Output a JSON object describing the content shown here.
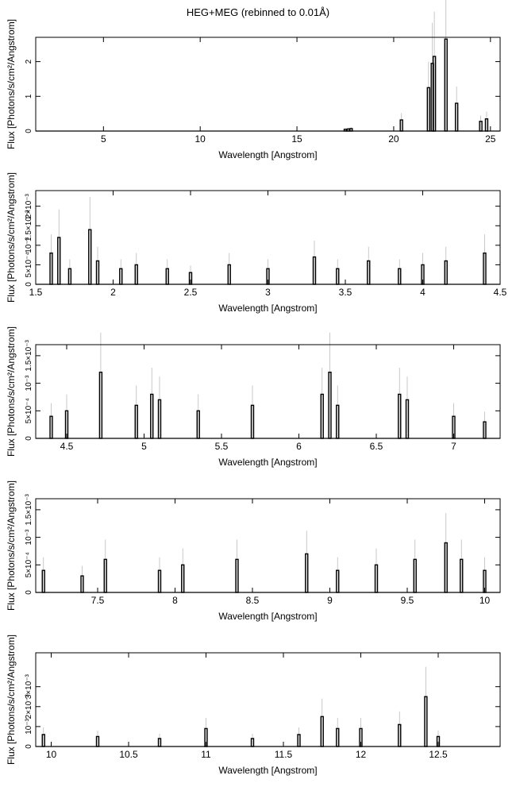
{
  "figure": {
    "title": "HEG+MEG (rebinned to 0.01Å)"
  },
  "chart_data": [
    {
      "type": "line",
      "xlabel": "Wavelength [Angstrom]",
      "ylabel": "Flux [Photons/s/cm²/Angstrom]",
      "xlim": [
        1.5,
        25.5
      ],
      "ylim": [
        0,
        2.7
      ],
      "xticks": [
        5,
        10,
        15,
        20,
        25
      ],
      "xtick_labels": [
        "5",
        "10",
        "15",
        "20",
        "25"
      ],
      "yticks": [
        0,
        1,
        2
      ],
      "ytick_labels": [
        "0",
        "1",
        "2"
      ],
      "steps": [
        [
          17.5,
          0.05
        ],
        [
          17.65,
          0.06
        ],
        [
          17.8,
          0.07
        ],
        [
          20.4,
          0.32
        ],
        [
          21.8,
          1.25
        ],
        [
          22.0,
          1.95
        ],
        [
          22.1,
          2.15
        ],
        [
          22.7,
          2.65
        ],
        [
          23.25,
          0.8
        ],
        [
          24.5,
          0.28
        ],
        [
          24.8,
          0.35
        ]
      ]
    },
    {
      "type": "line",
      "xlabel": "Wavelength [Angstrom]",
      "ylabel": "Flux [Photons/s/cm²/Angstrom]",
      "xlim": [
        1.5,
        4.5
      ],
      "ylim": [
        0,
        0.0024
      ],
      "xticks": [
        1.5,
        2,
        2.5,
        3,
        3.5,
        4,
        4.5
      ],
      "xtick_labels": [
        "1.5",
        "2",
        "2.5",
        "3",
        "3.5",
        "4",
        "4.5"
      ],
      "yticks": [
        0,
        0.0005,
        0.001,
        0.0015,
        0.002
      ],
      "ytick_labels": [
        "0",
        "5×10⁻⁴",
        "10⁻³",
        "1.5×10⁻³",
        "2×10⁻³"
      ],
      "steps": [
        [
          1.6,
          0.0008
        ],
        [
          1.65,
          0.0012
        ],
        [
          1.72,
          0.0004
        ],
        [
          1.85,
          0.0014
        ],
        [
          1.9,
          0.0006
        ],
        [
          2.05,
          0.0004
        ],
        [
          2.15,
          0.0005
        ],
        [
          2.35,
          0.0004
        ],
        [
          2.5,
          0.0003
        ],
        [
          2.75,
          0.0005
        ],
        [
          3.0,
          0.0004
        ],
        [
          3.3,
          0.0007
        ],
        [
          3.45,
          0.0004
        ],
        [
          3.65,
          0.0006
        ],
        [
          3.85,
          0.0004
        ],
        [
          4.0,
          0.0005
        ],
        [
          4.15,
          0.0006
        ],
        [
          4.4,
          0.0008
        ]
      ]
    },
    {
      "type": "line",
      "xlabel": "Wavelength [Angstrom]",
      "ylabel": "Flux [Photons/s/cm²/Angstrom]",
      "xlim": [
        4.3,
        7.3
      ],
      "ylim": [
        0,
        0.0017
      ],
      "xticks": [
        4.5,
        5,
        5.5,
        6,
        6.5,
        7
      ],
      "xtick_labels": [
        "4.5",
        "5",
        "5.5",
        "6",
        "6.5",
        "7"
      ],
      "yticks": [
        0,
        0.0005,
        0.001,
        0.0015
      ],
      "ytick_labels": [
        "0",
        "5×10⁻⁴",
        "10⁻³",
        "1.5×10⁻³"
      ],
      "steps": [
        [
          4.4,
          0.0004
        ],
        [
          4.5,
          0.0005
        ],
        [
          4.72,
          0.0012
        ],
        [
          4.95,
          0.0006
        ],
        [
          5.05,
          0.0008
        ],
        [
          5.1,
          0.0007
        ],
        [
          5.35,
          0.0005
        ],
        [
          5.7,
          0.0006
        ],
        [
          6.15,
          0.0008
        ],
        [
          6.2,
          0.0012
        ],
        [
          6.25,
          0.0006
        ],
        [
          6.65,
          0.0008
        ],
        [
          6.7,
          0.0007
        ],
        [
          7.0,
          0.0004
        ],
        [
          7.2,
          0.0003
        ]
      ]
    },
    {
      "type": "line",
      "xlabel": "Wavelength [Angstrom]",
      "ylabel": "Flux [Photons/s/cm²/Angstrom]",
      "xlim": [
        7.1,
        10.1
      ],
      "ylim": [
        0,
        0.0017
      ],
      "xticks": [
        7.5,
        8,
        8.5,
        9,
        9.5,
        10
      ],
      "xtick_labels": [
        "7.5",
        "8",
        "8.5",
        "9",
        "9.5",
        "10"
      ],
      "yticks": [
        0,
        0.0005,
        0.001,
        0.0015
      ],
      "ytick_labels": [
        "0",
        "5×10⁻⁴",
        "10⁻³",
        "1.5×10⁻³"
      ],
      "steps": [
        [
          7.15,
          0.0004
        ],
        [
          7.4,
          0.0003
        ],
        [
          7.55,
          0.0006
        ],
        [
          7.9,
          0.0004
        ],
        [
          8.05,
          0.0005
        ],
        [
          8.4,
          0.0006
        ],
        [
          8.85,
          0.0007
        ],
        [
          9.05,
          0.0004
        ],
        [
          9.3,
          0.0005
        ],
        [
          9.55,
          0.0006
        ],
        [
          9.75,
          0.0009
        ],
        [
          9.85,
          0.0006
        ],
        [
          10.0,
          0.0004
        ]
      ]
    },
    {
      "type": "line",
      "xlabel": "Wavelength [Angstrom]",
      "ylabel": "Flux [Photons/s/cm²/Angstrom]",
      "xlim": [
        9.9,
        12.9
      ],
      "ylim": [
        0,
        0.0047
      ],
      "xticks": [
        10,
        10.5,
        11,
        11.5,
        12,
        12.5
      ],
      "xtick_labels": [
        "10",
        "10.5",
        "11",
        "11.5",
        "12",
        "12.5"
      ],
      "yticks": [
        0,
        0.001,
        0.002,
        0.003
      ],
      "ytick_labels": [
        "0",
        "10⁻³",
        "2×10⁻³",
        "3×10⁻³"
      ],
      "steps": [
        [
          9.95,
          0.0006
        ],
        [
          10.3,
          0.0005
        ],
        [
          10.7,
          0.0004
        ],
        [
          11.0,
          0.0009
        ],
        [
          11.3,
          0.0004
        ],
        [
          11.6,
          0.0006
        ],
        [
          11.75,
          0.0015
        ],
        [
          11.85,
          0.0009
        ],
        [
          12.0,
          0.0009
        ],
        [
          12.25,
          0.0011
        ],
        [
          12.42,
          0.0025
        ],
        [
          12.5,
          0.0005
        ]
      ]
    }
  ]
}
